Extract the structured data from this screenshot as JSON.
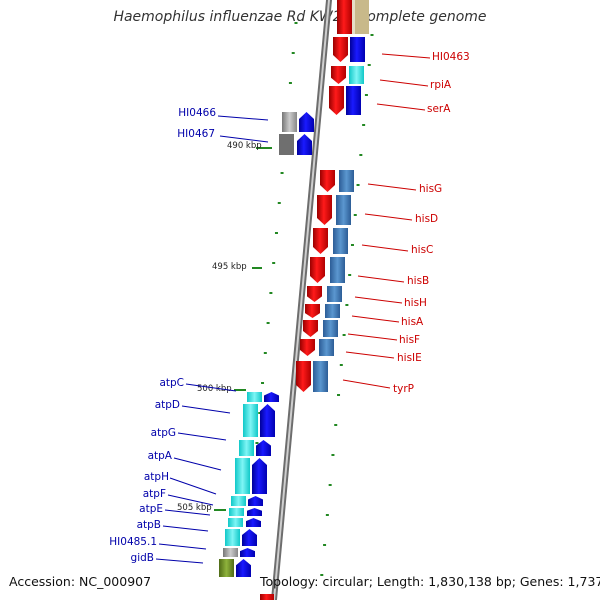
{
  "title": "Haemophilus influenzae Rd KW20, complete genome",
  "footer": {
    "accession": "Accession: NC_000907",
    "info": "Topology: circular; Length: 1,830,138 bp; Genes: 1,737"
  },
  "kbp_labels": [
    "490 kbp",
    "495 kbp",
    "500 kbp",
    "505 kbp"
  ],
  "right_labels": [
    "HI0463",
    "rpiA",
    "serA",
    "hisG",
    "hisD",
    "hisC",
    "hisB",
    "hisH",
    "hisA",
    "hisF",
    "hisIE",
    "tyrP"
  ],
  "left_labels": [
    "HI0466",
    "HI0467",
    "atpC",
    "atpD",
    "atpG",
    "atpA",
    "atpH",
    "atpF",
    "atpE",
    "atpB",
    "HI0485.1",
    "gidB"
  ],
  "colors": {
    "forward_gene": "#e80000",
    "reverse_gene": "#0000ee",
    "cog_blue": "#3b6fb5",
    "cog_steel": "#4a86c0",
    "cog_cyan": "#22dede",
    "cog_gray": "#9a9a9a",
    "cog_olive": "#6b8e23",
    "backbone": "#888888",
    "right_label": "#cc0000",
    "left_label": "#0000aa",
    "tick": "#228822"
  }
}
